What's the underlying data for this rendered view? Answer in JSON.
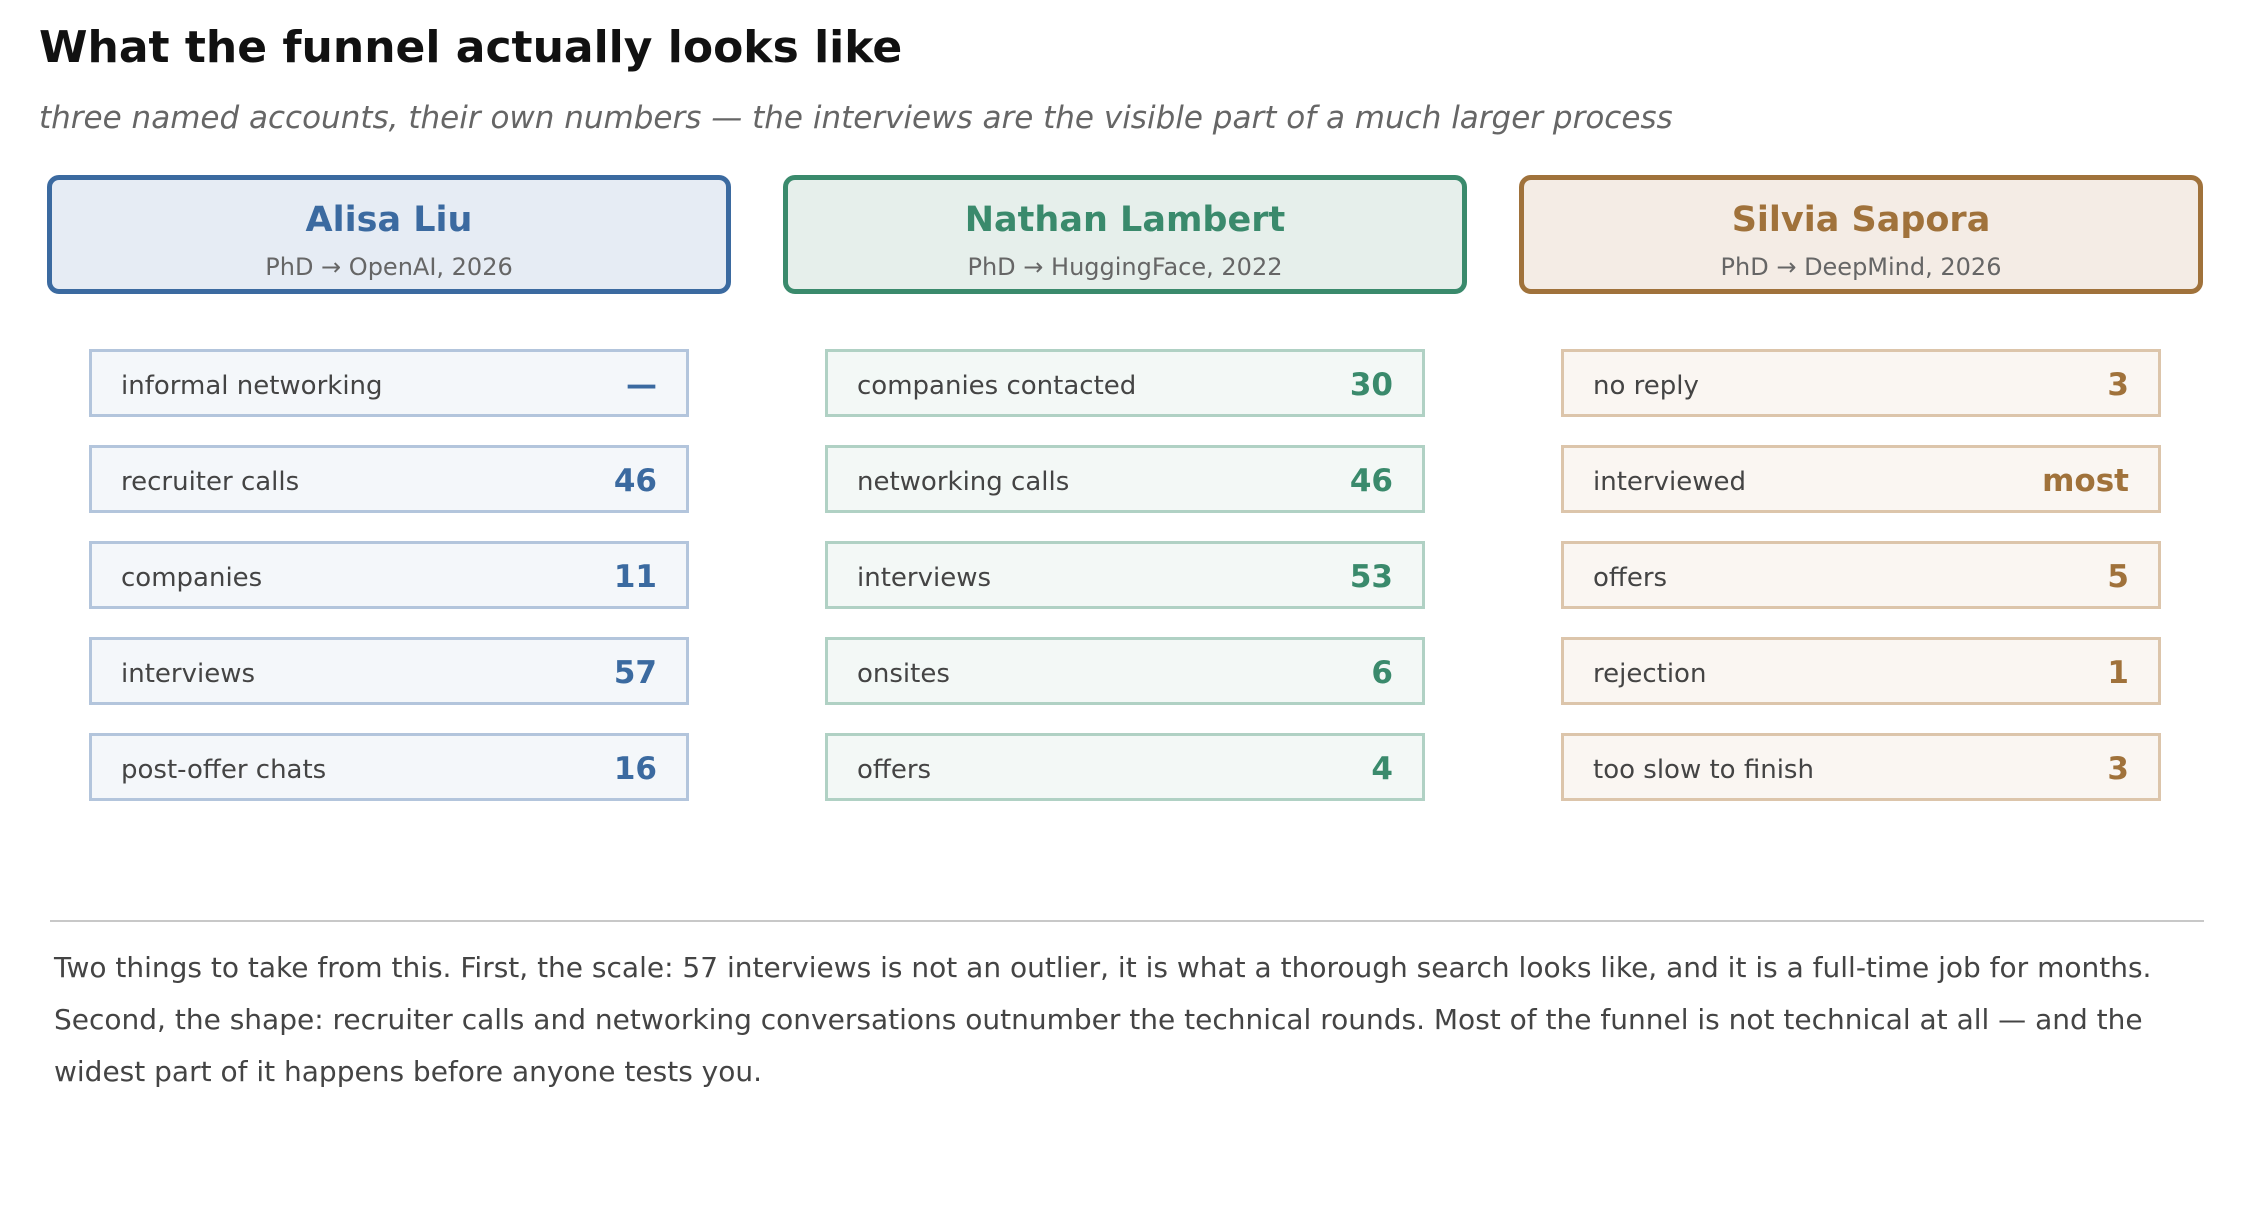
{
  "title": "What the funnel actually looks like",
  "subtitle": "three named accounts, their own numbers — the interviews are the visible part of a much larger process",
  "colors": {
    "alisa": "#3b6aa0",
    "nathan": "#3a8a6c",
    "silvia": "#a0723b"
  },
  "accounts": [
    {
      "name": "Alisa Liu",
      "role": "PhD → OpenAI, 2026",
      "rows": [
        {
          "label": "informal networking",
          "value": "—"
        },
        {
          "label": "recruiter calls",
          "value": "46"
        },
        {
          "label": "companies",
          "value": "11"
        },
        {
          "label": "interviews",
          "value": "57"
        },
        {
          "label": "post-offer chats",
          "value": "16"
        }
      ]
    },
    {
      "name": "Nathan Lambert",
      "role": "PhD → HuggingFace, 2022",
      "rows": [
        {
          "label": "companies contacted",
          "value": "30"
        },
        {
          "label": "networking calls",
          "value": "46"
        },
        {
          "label": "interviews",
          "value": "53"
        },
        {
          "label": "onsites",
          "value": "6"
        },
        {
          "label": "offers",
          "value": "4"
        }
      ]
    },
    {
      "name": "Silvia Sapora",
      "role": "PhD → DeepMind, 2026",
      "rows": [
        {
          "label": "no reply",
          "value": "3"
        },
        {
          "label": "interviewed",
          "value": "most"
        },
        {
          "label": "offers",
          "value": "5"
        },
        {
          "label": "rejection",
          "value": "1"
        },
        {
          "label": "too slow to finish",
          "value": "3"
        }
      ]
    }
  ],
  "takeaway": "Two things to take from this. First, the scale: 57 interviews is not an outlier, it is what a thorough search looks like, and it is a full-time job for months. Second, the shape: recruiter calls and networking conversations outnumber the technical rounds. Most of the funnel is not technical at all — and the widest part of it happens before anyone tests you."
}
